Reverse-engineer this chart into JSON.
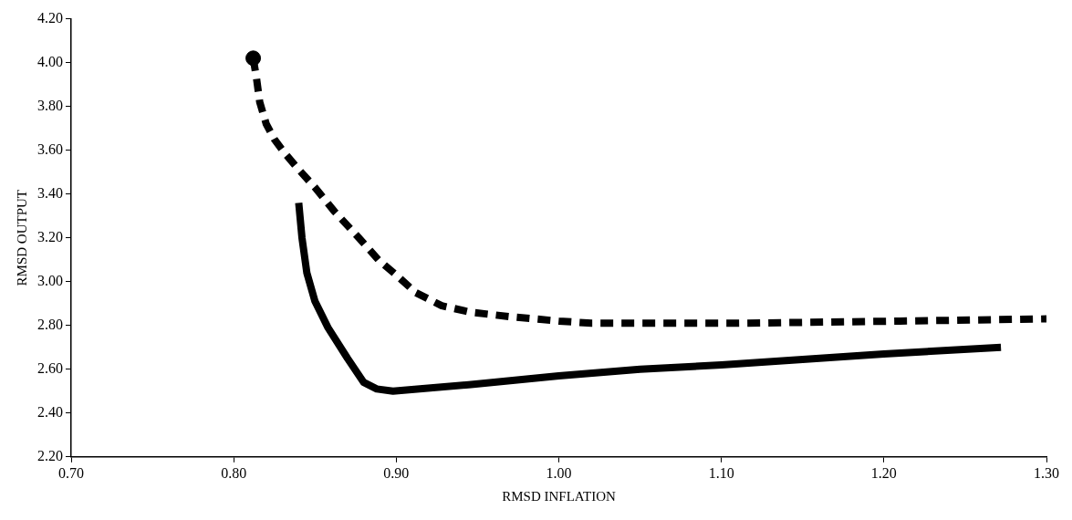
{
  "chart_data": {
    "type": "line",
    "xlabel": "RMSD INFLATION",
    "ylabel": "RMSD OUTPUT",
    "xlim": [
      0.7,
      1.3
    ],
    "ylim": [
      2.2,
      4.2
    ],
    "xticks": [
      {
        "value": 0.7,
        "label": "0.70"
      },
      {
        "value": 0.8,
        "label": "0.80"
      },
      {
        "value": 0.9,
        "label": "0.90"
      },
      {
        "value": 1.0,
        "label": "1.00"
      },
      {
        "value": 1.1,
        "label": "1.10"
      },
      {
        "value": 1.2,
        "label": "1.20"
      },
      {
        "value": 1.3,
        "label": "1.30"
      }
    ],
    "yticks": [
      {
        "value": 2.2,
        "label": "2.20"
      },
      {
        "value": 2.4,
        "label": "2.40"
      },
      {
        "value": 2.6,
        "label": "2.60"
      },
      {
        "value": 2.8,
        "label": "2.80"
      },
      {
        "value": 3.0,
        "label": "3.00"
      },
      {
        "value": 3.2,
        "label": "3.20"
      },
      {
        "value": 3.4,
        "label": "3.40"
      },
      {
        "value": 3.6,
        "label": "3.60"
      },
      {
        "value": 3.8,
        "label": "3.80"
      },
      {
        "value": 4.0,
        "label": "4.00"
      },
      {
        "value": 4.2,
        "label": "4.20"
      }
    ],
    "grid": false,
    "legend": false,
    "series": [
      {
        "type": "line",
        "line_style": "dashed",
        "marker": "none",
        "color": "#000000",
        "x": [
          0.812,
          0.814,
          0.816,
          0.82,
          0.825,
          0.831,
          0.839,
          0.85,
          0.862,
          0.877,
          0.889,
          0.9,
          0.912,
          0.928,
          0.946,
          0.97,
          1.0,
          1.02,
          1.04,
          1.11,
          1.21,
          1.3
        ],
        "values": [
          4.02,
          3.93,
          3.82,
          3.72,
          3.65,
          3.59,
          3.52,
          3.43,
          3.32,
          3.2,
          3.1,
          3.03,
          2.95,
          2.89,
          2.86,
          2.84,
          2.82,
          2.81,
          2.81,
          2.81,
          2.82,
          2.83
        ]
      },
      {
        "type": "line",
        "line_style": "solid",
        "marker": "none",
        "color": "#000000",
        "x": [
          0.84,
          0.842,
          0.845,
          0.85,
          0.858,
          0.87,
          0.88,
          0.888,
          0.898,
          0.946,
          1.0,
          1.05,
          1.1,
          1.2,
          1.272
        ],
        "values": [
          3.36,
          3.2,
          3.04,
          2.91,
          2.79,
          2.65,
          2.54,
          2.51,
          2.5,
          2.53,
          2.57,
          2.6,
          2.62,
          2.67,
          2.7
        ]
      },
      {
        "type": "scatter",
        "marker": "circle",
        "color": "#000000",
        "x": [
          0.812
        ],
        "values": [
          4.02
        ]
      }
    ]
  }
}
